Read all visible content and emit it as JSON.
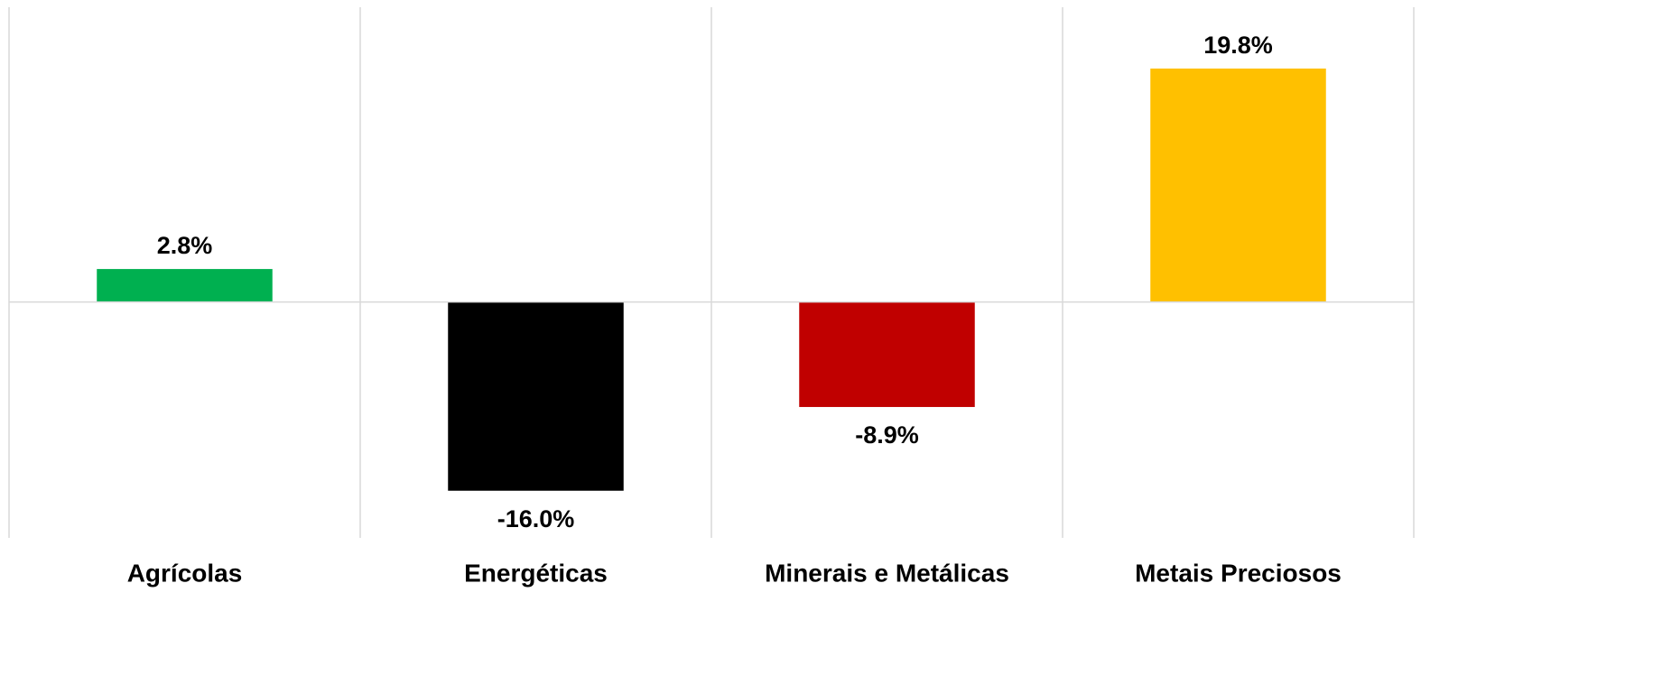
{
  "chart_data": {
    "type": "bar",
    "categories": [
      "Agrícolas",
      "Energéticas",
      "Minerais e Metálicas",
      "Metais Preciosos"
    ],
    "values": [
      2.8,
      -16.0,
      -8.9,
      19.8
    ],
    "value_labels": [
      "2.8%",
      "-16.0%",
      "-8.9%",
      "19.8%"
    ],
    "colors": [
      "#00b050",
      "#000000",
      "#c00000",
      "#ffc000"
    ],
    "ylim": [
      -20,
      25
    ],
    "grid": true
  }
}
